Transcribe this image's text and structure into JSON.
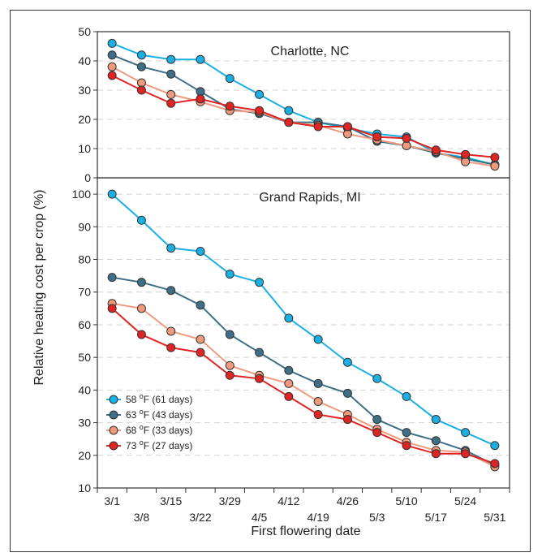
{
  "chart_data": {
    "type": "line",
    "ylabel": "Relative heating cost per crop (%)",
    "xlabel": "First flowering date",
    "x_ticks": [
      "3/1",
      "3/8",
      "3/15",
      "3/22",
      "3/29",
      "4/5",
      "4/12",
      "4/19",
      "4/26",
      "5/3",
      "5/10",
      "5/17",
      "5/24",
      "5/31"
    ],
    "legend": {
      "placement": "bottom-left of lower panel",
      "entries": [
        {
          "prefix": "58 ",
          "sup": "o",
          "suffix": "F (61 days)"
        },
        {
          "prefix": "63 ",
          "sup": "o",
          "suffix": "F (43 days)"
        },
        {
          "prefix": "68 ",
          "sup": "o",
          "suffix": "F (33 days)"
        },
        {
          "prefix": "73 ",
          "sup": "o",
          "suffix": "F (27 days)"
        }
      ]
    },
    "colors": [
      "#1ab0e4",
      "#3f6f87",
      "#ef9a7d",
      "#e02424"
    ],
    "panels": [
      {
        "title": "Charlotte, NC",
        "ylim": [
          0,
          50
        ],
        "yticks": [
          0,
          10,
          20,
          30,
          40,
          50
        ],
        "grid": true,
        "series": [
          {
            "values": [
              46,
              42,
              40.5,
              40.5,
              34,
              28.5,
              23,
              19,
              17,
              15,
              14,
              8.5,
              7,
              4.5
            ]
          },
          {
            "values": [
              42,
              38,
              35.5,
              29.5,
              23.5,
              22,
              19,
              19,
              17.5,
              12.5,
              11,
              8.5,
              6.5,
              4.5
            ]
          },
          {
            "values": [
              38,
              32.5,
              28.5,
              26,
              23,
              22.5,
              19,
              18,
              15,
              13,
              11,
              9,
              5.5,
              4
            ]
          },
          {
            "values": [
              35,
              30,
              25.5,
              27,
              24.5,
              23,
              19,
              17.5,
              17.5,
              14,
              13.5,
              9.5,
              8,
              7
            ]
          }
        ]
      },
      {
        "title": "Grand Rapids, MI",
        "ylim": [
          10,
          105
        ],
        "yticks": [
          10,
          20,
          30,
          40,
          50,
          60,
          70,
          80,
          90,
          100
        ],
        "grid": true,
        "series": [
          {
            "values": [
              100,
              92,
              83.5,
              82.5,
              75.5,
              73,
              62,
              55.5,
              48.5,
              43.5,
              38,
              31,
              27,
              23
            ]
          },
          {
            "values": [
              74.5,
              73,
              70.5,
              66,
              57,
              51.5,
              46,
              42,
              39,
              31,
              27,
              24.5,
              21.5,
              17
            ]
          },
          {
            "values": [
              66.5,
              65,
              58,
              55.5,
              47.5,
              44.5,
              42,
              36.5,
              32.5,
              28,
              24,
              21.5,
              21,
              16.5
            ]
          },
          {
            "values": [
              65,
              57,
              53,
              51.5,
              44.5,
              43.5,
              38,
              32.5,
              31,
              27,
              23,
              20.5,
              20.5,
              17.5
            ]
          }
        ]
      }
    ]
  }
}
